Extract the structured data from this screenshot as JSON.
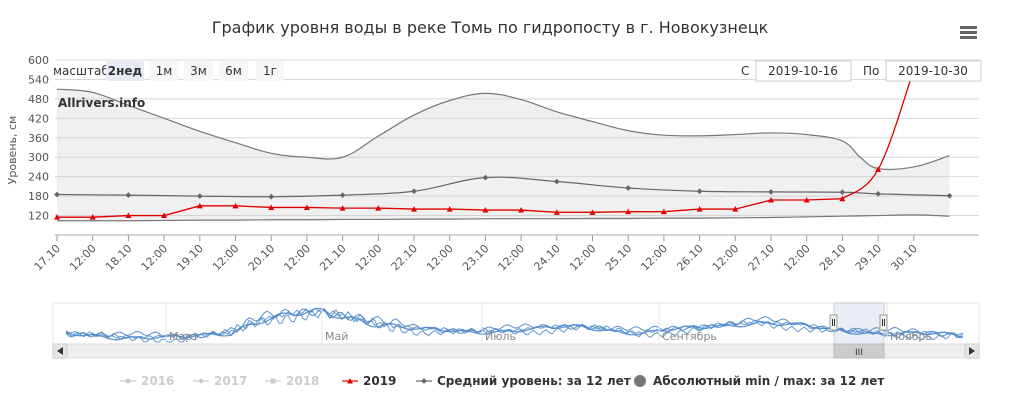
{
  "chart_data": {
    "type": "line",
    "title": "График уровня воды в реке Томь по гидропосту в г. Новокузнецк",
    "ylabel": "Уровень, см",
    "ylim": [
      60,
      600
    ],
    "yticks": [
      120,
      180,
      240,
      300,
      360,
      420,
      480,
      540,
      600
    ],
    "grid": true,
    "legend_position": "bottom",
    "x_ticks": [
      "17.10",
      "12:00",
      "18.10",
      "12:00",
      "19.10",
      "12:00",
      "20.10",
      "12:00",
      "21.10",
      "12:00",
      "22.10",
      "12:00",
      "23.10",
      "12:00",
      "24.10",
      "12:00",
      "25.10",
      "12:00",
      "26.10",
      "12:00",
      "27.10",
      "12:00",
      "28.10",
      "29.10",
      "30.10"
    ],
    "series": [
      {
        "name": "2019",
        "color": "#e00000",
        "x": [
          0,
          1,
          2,
          3,
          4,
          5,
          6,
          7,
          8,
          9,
          10,
          11,
          12,
          13,
          14,
          15,
          16,
          17,
          18,
          19,
          20,
          21,
          22,
          23,
          24
        ],
        "values": [
          115,
          115,
          120,
          120,
          150,
          150,
          145,
          145,
          143,
          143,
          140,
          140,
          137,
          137,
          130,
          130,
          132,
          132,
          140,
          140,
          168,
          168,
          172,
          262,
          570
        ]
      },
      {
        "name": "Средний уровень: за 12 лет",
        "color": "#666666",
        "x": [
          0,
          2,
          4,
          6,
          8,
          10,
          12,
          14,
          16,
          18,
          20,
          22,
          23,
          25
        ],
        "values": [
          185,
          183,
          180,
          178,
          183,
          195,
          237,
          225,
          205,
          195,
          193,
          192,
          187,
          181
        ]
      },
      {
        "name": "Абсолютный min / max: за 12 лет",
        "color": "#777777",
        "x": [
          0,
          1,
          2,
          3,
          4,
          5,
          6,
          7,
          8,
          9,
          10,
          11,
          12,
          13,
          14,
          15,
          16,
          17,
          18,
          19,
          20,
          21,
          22,
          22.5,
          23,
          24,
          25
        ],
        "max": [
          510,
          500,
          460,
          420,
          380,
          345,
          312,
          300,
          300,
          365,
          430,
          475,
          497,
          478,
          440,
          410,
          382,
          368,
          366,
          370,
          375,
          370,
          350,
          300,
          265,
          270,
          305
        ],
        "min": [
          104,
          104,
          104,
          105,
          106,
          106,
          107,
          107,
          108,
          108,
          109,
          109,
          110,
          110,
          110,
          111,
          111,
          112,
          112,
          113,
          114,
          116,
          118,
          119,
          120,
          122,
          118
        ]
      }
    ],
    "legend_items": [
      {
        "name": "2016",
        "color": "#cccccc",
        "marker": "circle",
        "active": false
      },
      {
        "name": "2017",
        "color": "#cccccc",
        "marker": "diamond",
        "active": false
      },
      {
        "name": "2018",
        "color": "#cccccc",
        "marker": "square",
        "active": false
      },
      {
        "name": "2019",
        "color": "#e00000",
        "marker": "triangle",
        "active": true
      },
      {
        "name": "Средний уровень: за 12 лет",
        "color": "#666666",
        "marker": "diamond",
        "active": true
      },
      {
        "name": "Абсолютный min / max: за 12 лет",
        "color": "#777777",
        "marker": "circle-big",
        "active": true
      }
    ],
    "watermark": "Allrivers.info"
  },
  "range_selector": {
    "label": "масштаб",
    "buttons": [
      "2нед",
      "1м",
      "3м",
      "6м",
      "1г"
    ],
    "selected": "2нед",
    "disabled": [
      "1г"
    ],
    "from_label": "С",
    "from_value": "2019-10-16",
    "to_label": "По",
    "to_value": "2019-10-30"
  },
  "navigator": {
    "months": [
      "Март",
      "Май",
      "Июль",
      "Сентябрь",
      "Ноябрь"
    ],
    "scroll_grip": "III"
  },
  "menu_icon": "hamburger-menu-icon"
}
